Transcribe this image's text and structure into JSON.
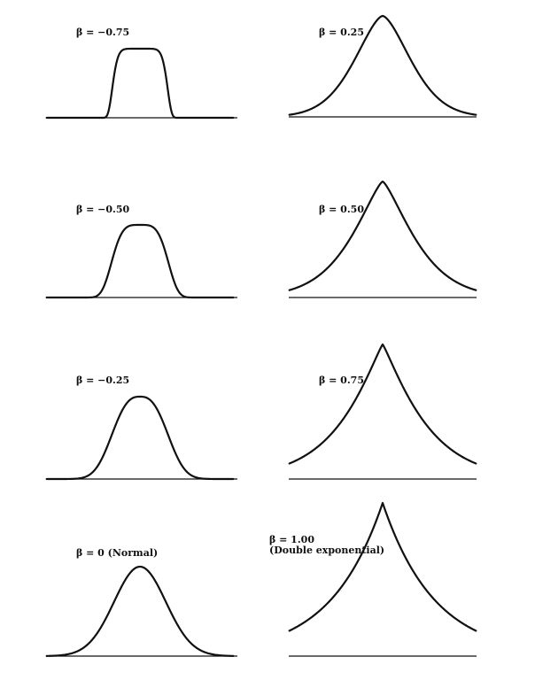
{
  "chart_data": [
    {
      "type": "line",
      "beta": -0.75,
      "label_lines": [
        "β = −0.75"
      ]
    },
    {
      "type": "line",
      "beta": 0.25,
      "label_lines": [
        "β = 0.25"
      ]
    },
    {
      "type": "line",
      "beta": -0.5,
      "label_lines": [
        "β = −0.50"
      ]
    },
    {
      "type": "line",
      "beta": 0.5,
      "label_lines": [
        "β = 0.50"
      ]
    },
    {
      "type": "line",
      "beta": -0.25,
      "label_lines": [
        "β = −0.25"
      ]
    },
    {
      "type": "line",
      "beta": 0.75,
      "label_lines": [
        "β = 0.75"
      ]
    },
    {
      "type": "line",
      "beta": 0,
      "label_lines": [
        "β = 0 (Normal)"
      ]
    },
    {
      "type": "line",
      "beta": 1.0,
      "label_lines": [
        "β = 1.00",
        "(Double exponential)"
      ]
    }
  ]
}
